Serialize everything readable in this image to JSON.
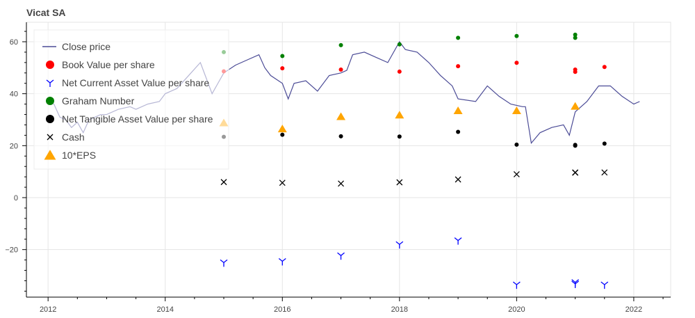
{
  "chart_data": {
    "type": "line",
    "title": "Vicat SA",
    "xlabel": "",
    "ylabel": "",
    "xlim": [
      2011.63,
      2022.63
    ],
    "ylim": [
      -38.3,
      67.5
    ],
    "grid": true,
    "legend_placement": "top-left",
    "x_ticks": [
      2012,
      2014,
      2016,
      2018,
      2020,
      2022
    ],
    "x_tick_labels": [
      "2012",
      "2014",
      "2016",
      "2018",
      "2020",
      "2022"
    ],
    "y_ticks": [
      -20,
      0,
      20,
      40,
      60
    ],
    "y_tick_labels": [
      "−20",
      "0",
      "20",
      "40",
      "60"
    ],
    "close_price": {
      "name": "Close price",
      "color": "#4b4b96",
      "x": [
        2012.0,
        2012.1,
        2012.2,
        2012.3,
        2012.4,
        2012.5,
        2012.6,
        2012.7,
        2012.8,
        2012.9,
        2013.0,
        2013.2,
        2013.4,
        2013.5,
        2013.7,
        2013.9,
        2014.0,
        2014.2,
        2014.4,
        2014.6,
        2014.7,
        2014.8,
        2014.9,
        2015.0,
        2015.2,
        2015.4,
        2015.6,
        2015.7,
        2015.8,
        2016.0,
        2016.1,
        2016.2,
        2016.4,
        2016.6,
        2016.8,
        2017.0,
        2017.1,
        2017.2,
        2017.4,
        2017.6,
        2017.8,
        2018.0,
        2018.1,
        2018.3,
        2018.5,
        2018.7,
        2018.9,
        2019.0,
        2019.3,
        2019.5,
        2019.7,
        2019.9,
        2020.1,
        2020.15,
        2020.25,
        2020.4,
        2020.6,
        2020.8,
        2020.9,
        2021.0,
        2021.2,
        2021.4,
        2021.6,
        2021.8,
        2022.0,
        2022.1
      ],
      "y": [
        37,
        36,
        31,
        30,
        27,
        29,
        25,
        30,
        31,
        32,
        32,
        34,
        35,
        34,
        36,
        37,
        40,
        42,
        47,
        52,
        46,
        40,
        44,
        48,
        51,
        53,
        55,
        50,
        47,
        44,
        38,
        44,
        45,
        41,
        47,
        48,
        49,
        55,
        56,
        54,
        52,
        60,
        57,
        56,
        52,
        47,
        43,
        38,
        37,
        43,
        39,
        36,
        35,
        35,
        21,
        25,
        27,
        28,
        24,
        33,
        37,
        43,
        43,
        39,
        36,
        37
      ]
    },
    "series": [
      {
        "name": "Book Value per share",
        "marker": "circle",
        "color": "#ff0000",
        "x": [
          2015,
          2016,
          2017,
          2018,
          2019,
          2020,
          2021,
          2021,
          2021.5
        ],
        "values": [
          48.6,
          49.8,
          49.3,
          48.5,
          50.6,
          51.9,
          49.3,
          48.4,
          50.3
        ]
      },
      {
        "name": "Net Current Asset Value per share",
        "marker": "tri_down",
        "color": "#0000ff",
        "x": [
          2015,
          2016,
          2017,
          2018,
          2019,
          2020,
          2021,
          2021,
          2021.5
        ],
        "values": [
          -25,
          -24.5,
          -22.3,
          -18,
          -16.5,
          -33.5,
          -32.6,
          -33.2,
          -33.5
        ]
      },
      {
        "name": "Graham Number",
        "marker": "circle",
        "color": "#008000",
        "x": [
          2015,
          2016,
          2017,
          2018,
          2019,
          2020,
          2021,
          2021
        ],
        "values": [
          56,
          54.5,
          58.7,
          59,
          61.5,
          62.2,
          62.7,
          61.5
        ]
      },
      {
        "name": "Net Tangible Asset Value per share",
        "marker": "circle",
        "color": "#000000",
        "x": [
          2015,
          2016,
          2017,
          2018,
          2019,
          2020,
          2021,
          2021,
          2021.5
        ],
        "values": [
          23.4,
          24.2,
          23.6,
          23.5,
          25.3,
          20.4,
          20.0,
          20.3,
          20.8
        ]
      },
      {
        "name": "Cash",
        "marker": "x",
        "color": "#000000",
        "x": [
          2015,
          2016,
          2017,
          2018,
          2019,
          2020,
          2021,
          2021,
          2021.5
        ],
        "values": [
          6.0,
          5.7,
          5.4,
          5.9,
          7.0,
          9.0,
          9.6,
          9.7,
          9.7
        ]
      },
      {
        "name": "10*EPS",
        "marker": "triangle",
        "color": "#ffa500",
        "x": [
          2015,
          2016,
          2017,
          2018,
          2019,
          2020,
          2021
        ],
        "values": [
          28.8,
          26.5,
          31.2,
          31.8,
          33.5,
          33.5,
          35.2
        ]
      }
    ]
  }
}
